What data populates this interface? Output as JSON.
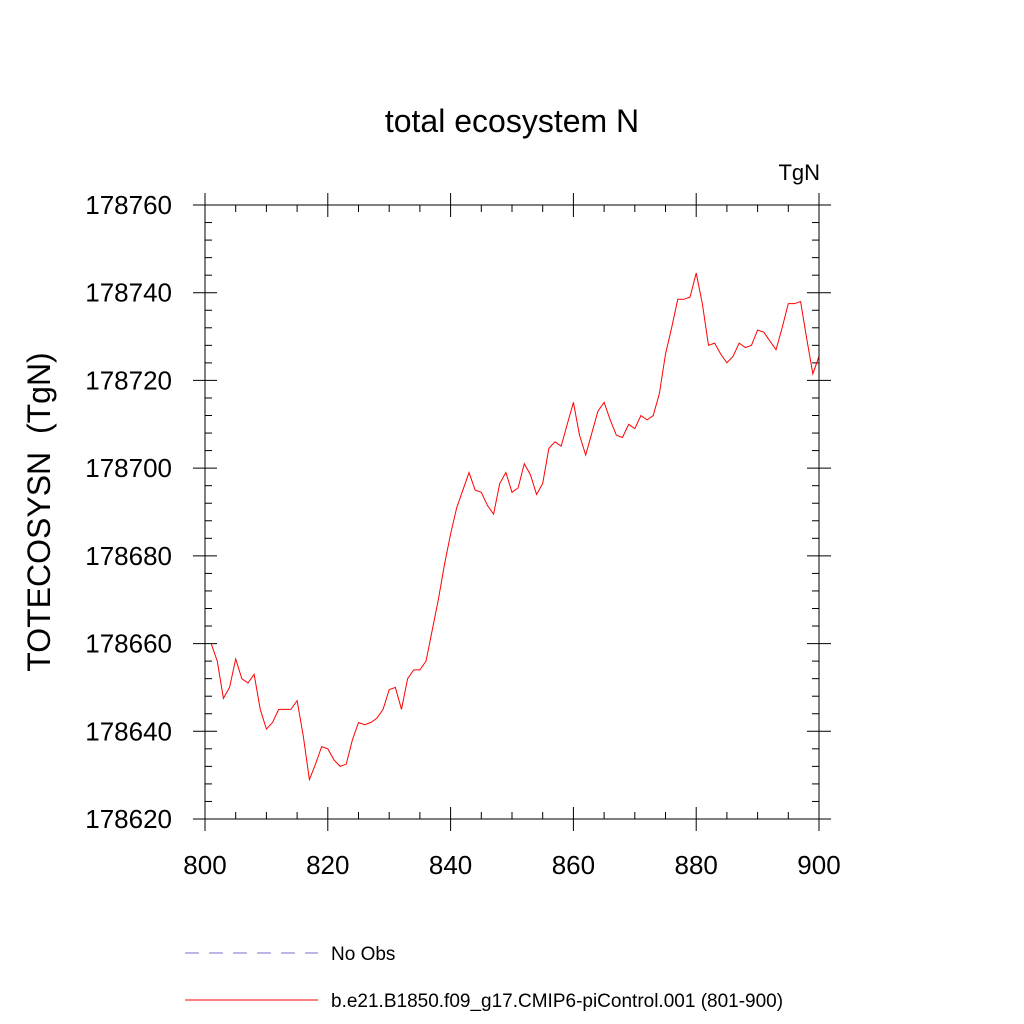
{
  "chart_data": {
    "type": "line",
    "title": "total ecosystem N",
    "units_label": "TgN",
    "xlabel": "",
    "ylabel": "TOTECOSYSN  (TgN)",
    "xlim": [
      800,
      900
    ],
    "ylim": [
      178620,
      178760
    ],
    "x_ticks": [
      800,
      820,
      840,
      860,
      880,
      900
    ],
    "x_tick_labels": [
      "800",
      "820",
      "840",
      "860",
      "880",
      "900"
    ],
    "x_minor_step": 5,
    "y_ticks": [
      178620,
      178640,
      178660,
      178680,
      178700,
      178720,
      178740,
      178760
    ],
    "y_tick_labels": [
      "178620",
      "178640",
      "178660",
      "178680",
      "178700",
      "178720",
      "178740",
      "178760"
    ],
    "y_minor_step": 4,
    "legend_position": "bottom",
    "series": [
      {
        "name": "b.e21.B1850.f09_g17.CMIP6-piControl.001 (801-900)",
        "color": "#ff0000",
        "style": "solid",
        "x": [
          801,
          802,
          803,
          804,
          805,
          806,
          807,
          808,
          809,
          810,
          811,
          812,
          813,
          814,
          815,
          816,
          817,
          818,
          819,
          820,
          821,
          822,
          823,
          824,
          825,
          826,
          827,
          828,
          829,
          830,
          831,
          832,
          833,
          834,
          835,
          836,
          837,
          838,
          839,
          840,
          841,
          842,
          843,
          844,
          845,
          846,
          847,
          848,
          849,
          850,
          851,
          852,
          853,
          854,
          855,
          856,
          857,
          858,
          859,
          860,
          861,
          862,
          863,
          864,
          865,
          866,
          867,
          868,
          869,
          870,
          871,
          872,
          873,
          874,
          875,
          876,
          877,
          878,
          879,
          880,
          881,
          882,
          883,
          884,
          885,
          886,
          887,
          888,
          889,
          890,
          891,
          892,
          893,
          894,
          895,
          896,
          897,
          898,
          899,
          900
        ],
        "y": [
          178660,
          178656,
          178647.5,
          178650,
          178656.5,
          178652,
          178651,
          178653,
          178645,
          178640.5,
          178642,
          178645,
          178645,
          178645,
          178647,
          178639,
          178629,
          178632.5,
          178636.5,
          178636,
          178633.5,
          178632,
          178632.5,
          178638,
          178642,
          178641.5,
          178642,
          178643,
          178645,
          178649.5,
          178650,
          178645,
          178652,
          178654,
          178654,
          178656,
          178663,
          178670,
          178678,
          178685,
          178691,
          178695,
          178699,
          178695,
          178694.5,
          178691.5,
          178689.5,
          178696.5,
          178699,
          178694.5,
          178695.5,
          178701,
          178698.5,
          178694,
          178696.5,
          178704.5,
          178706,
          178705,
          178710,
          178715,
          178707.5,
          178703,
          178708,
          178713,
          178715,
          178711,
          178707.5,
          178707,
          178710,
          178709,
          178712,
          178711,
          178712,
          178717,
          178726,
          178732,
          178738.5,
          178738.5,
          178739,
          178744.5,
          178737.5,
          178728,
          178728.5,
          178726,
          178724,
          178725.5,
          178728.5,
          178727.5,
          178728,
          178731.5,
          178731,
          178729,
          178727,
          178732,
          178737.5,
          178737.5,
          178738,
          178729.5,
          178721.5,
          178725.5
        ]
      },
      {
        "name": "No Obs",
        "color": "#7b6fd0",
        "style": "dashed",
        "x": [],
        "y": []
      }
    ]
  }
}
